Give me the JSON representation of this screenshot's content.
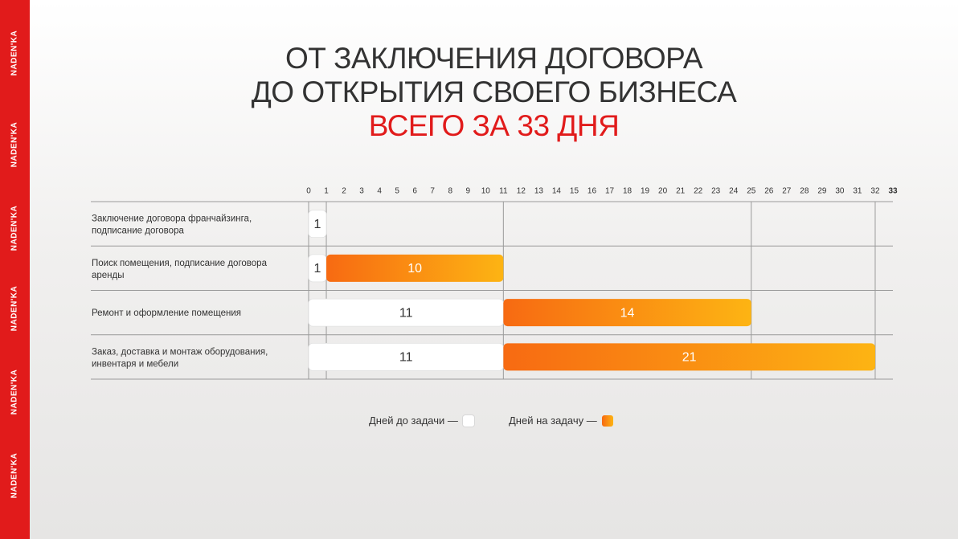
{
  "brand": {
    "repeats": [
      "NADEN'KA",
      "NADEN'KA",
      "NADEN'KA",
      "NADEN'KA",
      "NADEN'KA",
      "NADEN'KA"
    ],
    "color": "#e11b1b"
  },
  "title": {
    "line1": "ОТ ЗАКЛЮЧЕНИЯ ДОГОВОРА",
    "line2": "ДО ОТКРЫТИЯ СВОЕГО БИЗНЕСА",
    "accent": "ВСЕГО ЗА 33 ДНЯ"
  },
  "chart_data": {
    "type": "bar",
    "orientation": "horizontal-stacked",
    "x_ticks": [
      "0",
      "1",
      "2",
      "3",
      "4",
      "5",
      "6",
      "7",
      "8",
      "9",
      "10",
      "11",
      "12",
      "13",
      "14",
      "15",
      "16",
      "17",
      "18",
      "19",
      "20",
      "21",
      "22",
      "23",
      "24",
      "25",
      "26",
      "27",
      "28",
      "29",
      "30",
      "31",
      "32",
      "33"
    ],
    "xlim": [
      0,
      33
    ],
    "highlight_tick": "33",
    "categories": [
      "Заключение договора франчайзинга, подписание договора",
      "Поиск помещения, подписание договора аренды",
      "Ремонт и оформление помещения",
      "Заказ, доставка и монтаж оборудования, инвентаря и мебели"
    ],
    "series": [
      {
        "name": "Дней до задачи",
        "color": "#ffffff",
        "values": [
          1,
          1,
          11,
          11
        ]
      },
      {
        "name": "Дней на задачу",
        "color": "#f7801a",
        "values": [
          0,
          10,
          14,
          21
        ]
      }
    ],
    "data_labels": [
      [
        "1",
        ""
      ],
      [
        "1",
        "10"
      ],
      [
        "11",
        "14"
      ],
      [
        "11",
        "21"
      ]
    ],
    "legend": {
      "position": "bottom",
      "items": [
        {
          "label": "Дней до задачи —",
          "swatch": "white"
        },
        {
          "label": "Дней на задачу —",
          "swatch": "orange"
        }
      ]
    }
  }
}
